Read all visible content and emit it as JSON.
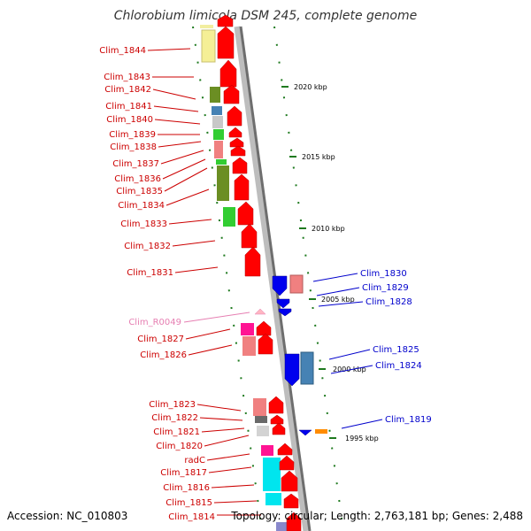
{
  "title": "Chlorobium limicola DSM 245, complete genome",
  "accession": "Accession: NC_010803",
  "topology": "Topology: circular; Length: 2,763,181 bp; Genes: 2,488",
  "colors": {
    "forward_label": "#cc0000",
    "reverse_label": "#0000cc",
    "rna_label": "#e67fb2",
    "forward_arrow": "#ff0000",
    "reverse_arrow": "#0000ee",
    "tick": "#1f7a1f"
  },
  "kbp_marks": [
    {
      "label": "2020 kbp"
    },
    {
      "label": "2015 kbp"
    },
    {
      "label": "2010 kbp"
    },
    {
      "label": "2005 kbp"
    },
    {
      "label": "2000 kbp"
    },
    {
      "label": "1995 kbp"
    }
  ],
  "forward_genes": [
    {
      "label": "Clim_1844"
    },
    {
      "label": "Clim_1843"
    },
    {
      "label": "Clim_1842"
    },
    {
      "label": "Clim_1841"
    },
    {
      "label": "Clim_1840"
    },
    {
      "label": "Clim_1839"
    },
    {
      "label": "Clim_1838"
    },
    {
      "label": "Clim_1837"
    },
    {
      "label": "Clim_1836"
    },
    {
      "label": "Clim_1835"
    },
    {
      "label": "Clim_1834"
    },
    {
      "label": "Clim_1833"
    },
    {
      "label": "Clim_1832"
    },
    {
      "label": "Clim_1831"
    },
    {
      "label": "Clim_R0049"
    },
    {
      "label": "Clim_1827"
    },
    {
      "label": "Clim_1826"
    },
    {
      "label": "Clim_1823"
    },
    {
      "label": "Clim_1822"
    },
    {
      "label": "Clim_1821"
    },
    {
      "label": "Clim_1820"
    },
    {
      "label": "radC"
    },
    {
      "label": "Clim_1817"
    },
    {
      "label": "Clim_1816"
    },
    {
      "label": "Clim_1815"
    },
    {
      "label": "Clim_1814"
    }
  ],
  "reverse_genes": [
    {
      "label": "Clim_1830"
    },
    {
      "label": "Clim_1829"
    },
    {
      "label": "Clim_1828"
    },
    {
      "label": "Clim_1825"
    },
    {
      "label": "Clim_1824"
    },
    {
      "label": "Clim_1819"
    }
  ]
}
